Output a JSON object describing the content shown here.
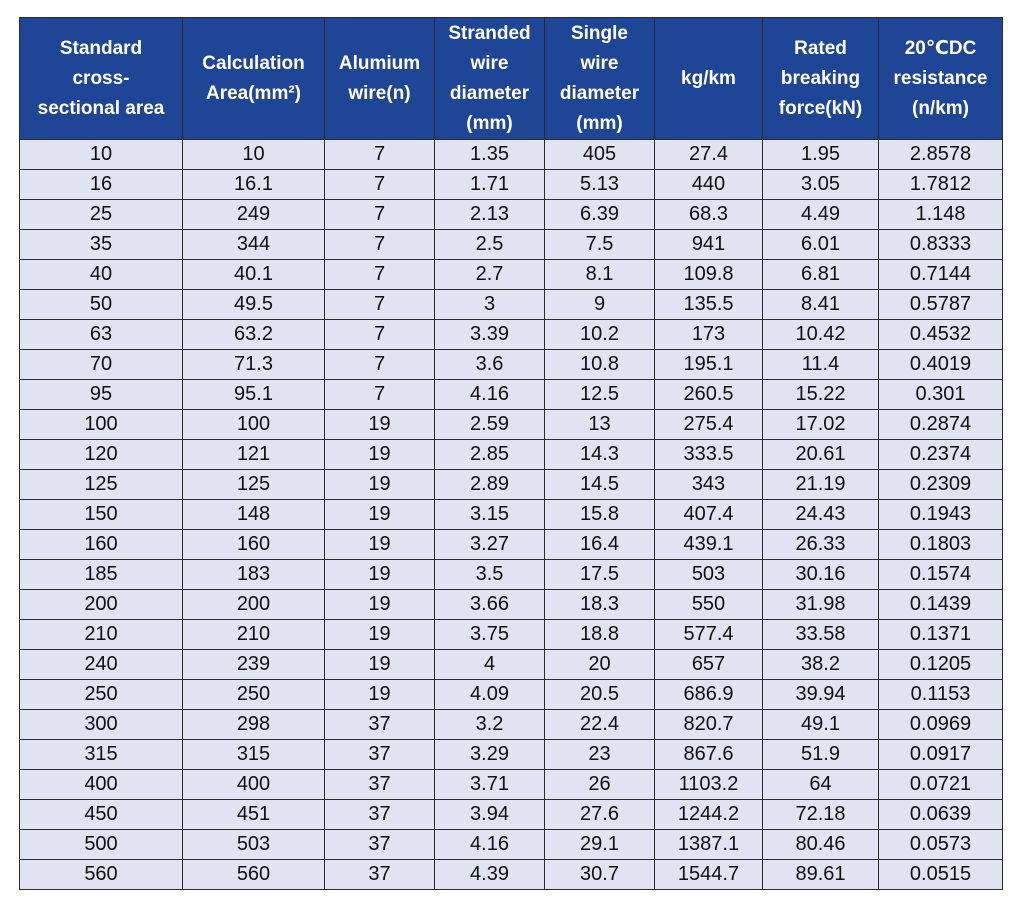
{
  "table": {
    "headers": [
      "Standard\ncross-\nsectional  area",
      "Calculation\nArea(mm²)",
      "Alumium\nwire(n)",
      "Stranded\nwire\ndiameter\n(mm)",
      "Single\nwire\ndiameter\n(mm)",
      "kg/km",
      "Rated\nbreaking\nforce(kN)",
      "20℃DC\nresistance\n(n/km)"
    ],
    "rows": [
      [
        "10",
        "10",
        "7",
        "1.35",
        "405",
        "27.4",
        "1.95",
        "2.8578"
      ],
      [
        "16",
        "16.1",
        "7",
        "1.71",
        "5.13",
        "440",
        "3.05",
        "1.7812"
      ],
      [
        "25",
        "249",
        "7",
        "2.13",
        "6.39",
        "68.3",
        "4.49",
        "1.148"
      ],
      [
        "35",
        "344",
        "7",
        "2.5",
        "7.5",
        "941",
        "6.01",
        "0.8333"
      ],
      [
        "40",
        "40.1",
        "7",
        "2.7",
        "8.1",
        "109.8",
        "6.81",
        "0.7144"
      ],
      [
        "50",
        "49.5",
        "7",
        "3",
        "9",
        "135.5",
        "8.41",
        "0.5787"
      ],
      [
        "63",
        "63.2",
        "7",
        "3.39",
        "10.2",
        "173",
        "10.42",
        "0.4532"
      ],
      [
        "70",
        "71.3",
        "7",
        "3.6",
        "10.8",
        "195.1",
        "11.4",
        "0.4019"
      ],
      [
        "95",
        "95.1",
        "7",
        "4.16",
        "12.5",
        "260.5",
        "15.22",
        "0.301"
      ],
      [
        "100",
        "100",
        "19",
        "2.59",
        "13",
        "275.4",
        "17.02",
        "0.2874"
      ],
      [
        "120",
        "121",
        "19",
        "2.85",
        "14.3",
        "333.5",
        "20.61",
        "0.2374"
      ],
      [
        "125",
        "125",
        "19",
        "2.89",
        "14.5",
        "343",
        "21.19",
        "0.2309"
      ],
      [
        "150",
        "148",
        "19",
        "3.15",
        "15.8",
        "407.4",
        "24.43",
        "0.1943"
      ],
      [
        "160",
        "160",
        "19",
        "3.27",
        "16.4",
        "439.1",
        "26.33",
        "0.1803"
      ],
      [
        "185",
        "183",
        "19",
        "3.5",
        "17.5",
        "503",
        "30.16",
        "0.1574"
      ],
      [
        "200",
        "200",
        "19",
        "3.66",
        "18.3",
        "550",
        "31.98",
        "0.1439"
      ],
      [
        "210",
        "210",
        "19",
        "3.75",
        "18.8",
        "577.4",
        "33.58",
        "0.1371"
      ],
      [
        "240",
        "239",
        "19",
        "4",
        "20",
        "657",
        "38.2",
        "0.1205"
      ],
      [
        "250",
        "250",
        "19",
        "4.09",
        "20.5",
        "686.9",
        "39.94",
        "0.1153"
      ],
      [
        "300",
        "298",
        "37",
        "3.2",
        "22.4",
        "820.7",
        "49.1",
        "0.0969"
      ],
      [
        "315",
        "315",
        "37",
        "3.29",
        "23",
        "867.6",
        "51.9",
        "0.0917"
      ],
      [
        "400",
        "400",
        "37",
        "3.71",
        "26",
        "1103.2",
        "64",
        "0.0721"
      ],
      [
        "450",
        "451",
        "37",
        "3.94",
        "27.6",
        "1244.2",
        "72.18",
        "0.0639"
      ],
      [
        "500",
        "503",
        "37",
        "4.16",
        "29.1",
        "1387.1",
        "80.46",
        "0.0573"
      ],
      [
        "560",
        "560",
        "37",
        "4.39",
        "30.7",
        "1544.7",
        "89.61",
        "0.0515"
      ]
    ]
  },
  "colors": {
    "header_background": "#1f4596",
    "header_text": "#ffffff",
    "cell_background": "#dfe3f2",
    "cell_text": "#111111",
    "grid_lines": "#2b2b2b"
  }
}
